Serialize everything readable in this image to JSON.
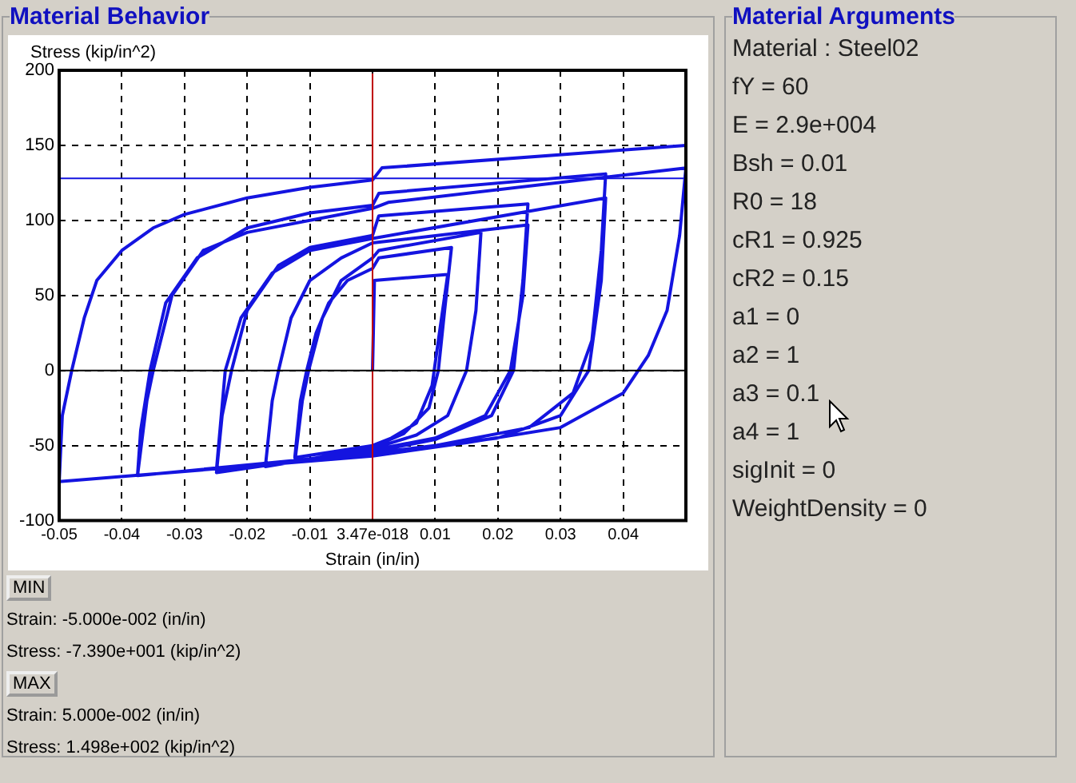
{
  "chart_data": [
    {
      "type": "line",
      "title": "Material Behavior",
      "xlabel": "Strain (in/in)",
      "ylabel": "Stress (kip/in^2)",
      "xlim": [
        -0.05,
        0.05
      ],
      "ylim": [
        -100,
        200
      ],
      "xticks": [
        -0.05,
        -0.04,
        -0.03,
        -0.02,
        -0.01,
        {
          "value": 0,
          "label": "3.47e-018"
        },
        0.01,
        0.02,
        0.03,
        0.04
      ],
      "yticks": [
        -100,
        -50,
        0,
        50,
        100,
        150,
        200
      ],
      "grid": true,
      "line_style": "solid",
      "marker": "none",
      "x": [
        0,
        0.0003,
        0.012,
        0.0105,
        0.0095,
        0.007,
        0.003,
        0,
        -0.0124,
        -0.0115,
        -0.0105,
        -0.009,
        -0.007,
        -0.004,
        0,
        0.001,
        0.0126,
        0.0115,
        0.0105,
        0.009,
        0.005,
        0,
        -0.0124,
        -0.0112,
        -0.0102,
        -0.008,
        -0.005,
        0,
        0.001,
        0.0173,
        0.0165,
        0.015,
        0.012,
        0.007,
        0,
        -0.0171,
        -0.016,
        -0.015,
        -0.013,
        -0.01,
        -0.005,
        0,
        0.0248,
        0.024,
        0.022,
        0.018,
        0.01,
        0,
        -0.0249,
        -0.024,
        -0.0225,
        -0.02,
        -0.015,
        -0.01,
        0,
        0.001,
        0.0248,
        0.024,
        0.0225,
        0.019,
        0.01,
        0,
        -0.0249,
        -0.0235,
        -0.021,
        -0.016,
        -0.01,
        0,
        0.0372,
        0.0365,
        0.0345,
        0.03,
        0.02,
        0,
        -0.0375,
        -0.037,
        -0.0355,
        -0.033,
        -0.028,
        -0.02,
        -0.01,
        0,
        0.001,
        0.0372,
        0.0365,
        0.035,
        0.032,
        0.025,
        0.01,
        0,
        -0.0375,
        -0.036,
        -0.035,
        -0.032,
        -0.027,
        -0.02,
        0,
        0.0025,
        0.05,
        0.049,
        0.047,
        0.044,
        0.04,
        0.03,
        0.015,
        0,
        -0.05,
        -0.0495,
        -0.048,
        -0.046,
        -0.044,
        -0.04,
        -0.035,
        -0.03,
        -0.02,
        -0.01,
        0,
        0.0015,
        0.05
      ],
      "series": [
        {
          "color": "#1414e0",
          "values": [
            0,
            60,
            64,
            20,
            -10,
            -35,
            -45,
            -50,
            -58,
            -20,
            0,
            25,
            45,
            60,
            68,
            75,
            82,
            40,
            0,
            -25,
            -42,
            -51,
            -61,
            -20,
            0,
            35,
            60,
            75,
            80,
            92,
            40,
            0,
            -30,
            -43,
            -52,
            -64,
            -20,
            0,
            35,
            60,
            75,
            85,
            97,
            50,
            0,
            -30,
            -45,
            -53,
            -68,
            -30,
            0,
            40,
            70,
            82,
            90,
            103,
            111,
            60,
            0,
            -30,
            -46,
            -54,
            -66,
            0,
            35,
            65,
            80,
            88,
            115,
            60,
            0,
            -30,
            -45,
            -55,
            -70,
            -40,
            0,
            45,
            75,
            95,
            105,
            110,
            118,
            131,
            80,
            20,
            -15,
            -38,
            -50,
            -55,
            -70,
            -20,
            0,
            50,
            80,
            92,
            108,
            112,
            135,
            90,
            40,
            10,
            -15,
            -38,
            -48,
            -57,
            -74,
            -30,
            0,
            35,
            60,
            80,
            95,
            104,
            115,
            122,
            127,
            135,
            150
          ]
        }
      ],
      "ref_lines": [
        {
          "axis": "y",
          "value": 128,
          "color": "#1414e0"
        },
        {
          "axis": "x",
          "value": 0,
          "color": "#c00000"
        },
        {
          "axis": "y",
          "value": 0,
          "color": "#000000"
        }
      ],
      "annotations": [
        "MIN",
        "Strain: -5.000e-002 (in/in)",
        "Stress: -7.390e+001 (kip/in^2)",
        "MAX",
        "Strain: 5.000e-002 (in/in)",
        "Stress: 1.498e+002 (kip/in^2)"
      ]
    },
    {
      "type": "other",
      "title": "Material Arguments",
      "annotations": [
        "Material : Steel02",
        "fY = 60",
        "E = 2.9e+004",
        "Bsh = 0.01",
        "R0 = 18",
        "cR1 = 0.925",
        "cR2 = 0.15",
        "a1 = 0",
        "a2 = 1",
        "a3 = 0.1",
        "a4 = 1",
        "sigInit = 0",
        "WeightDensity = 0"
      ]
    }
  ]
}
